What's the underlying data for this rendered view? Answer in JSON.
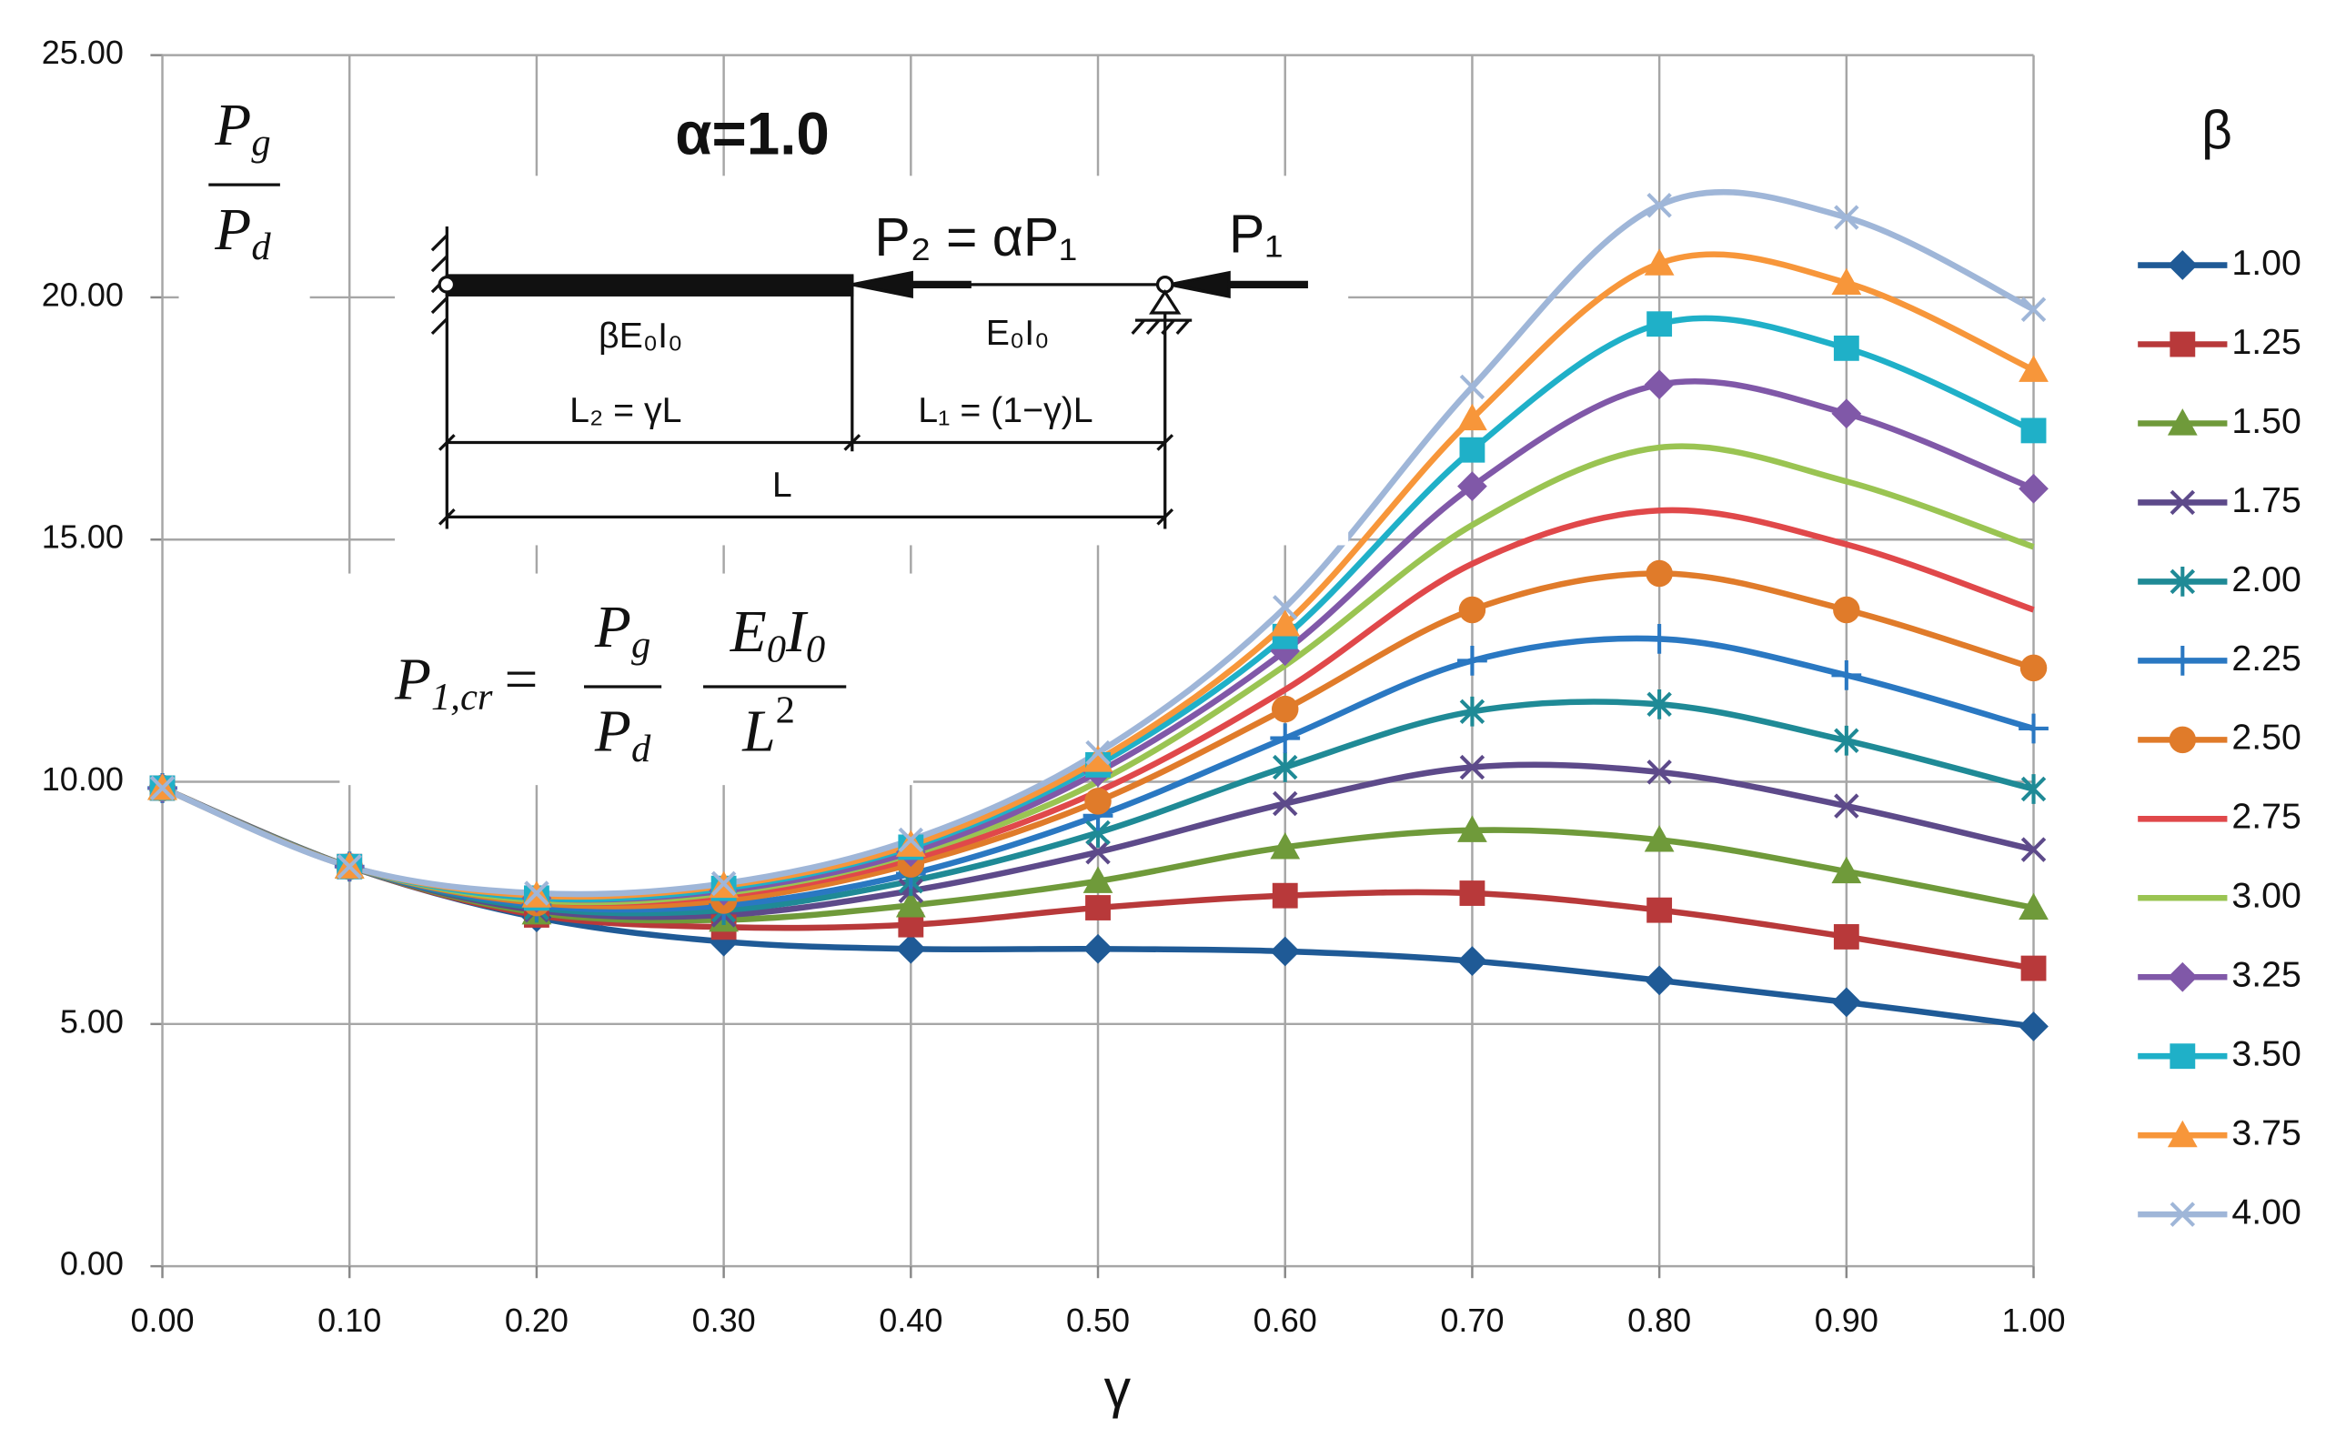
{
  "chart_data": {
    "type": "line",
    "x_label": "γ",
    "legend_title": "β",
    "legend_position": "right",
    "grid": true,
    "x": [
      0,
      0.1,
      0.2,
      0.3,
      0.4,
      0.5,
      0.6,
      0.7,
      0.8,
      0.9,
      1.0
    ],
    "xlim": [
      0,
      1
    ],
    "ylim": [
      0,
      25
    ],
    "xticks": [
      {
        "value": 0,
        "label": "0.00"
      },
      {
        "value": 0.1,
        "label": "0.10"
      },
      {
        "value": 0.2,
        "label": "0.20"
      },
      {
        "value": 0.3,
        "label": "0.30"
      },
      {
        "value": 0.4,
        "label": "0.40"
      },
      {
        "value": 0.5,
        "label": "0.50"
      },
      {
        "value": 0.6,
        "label": "0.60"
      },
      {
        "value": 0.7,
        "label": "0.70"
      },
      {
        "value": 0.8,
        "label": "0.80"
      },
      {
        "value": 0.9,
        "label": "0.90"
      },
      {
        "value": 1.0,
        "label": "1.00"
      }
    ],
    "yticks": [
      {
        "value": 0,
        "label": "0.00"
      },
      {
        "value": 5,
        "label": "5.00"
      },
      {
        "value": 10,
        "label": "10.00"
      },
      {
        "value": 15,
        "label": "15.00"
      },
      {
        "value": 20,
        "label": "20.00"
      },
      {
        "value": 25,
        "label": "25.00"
      }
    ],
    "series": [
      {
        "name": "1.00",
        "color": "#1f5a96",
        "marker": "diamond",
        "values": [
          9.87,
          8.25,
          7.2,
          6.7,
          6.55,
          6.55,
          6.5,
          6.3,
          5.9,
          5.45,
          4.95
        ]
      },
      {
        "name": "1.25",
        "color": "#b8393a",
        "marker": "square",
        "values": [
          9.87,
          8.25,
          7.25,
          7.0,
          7.05,
          7.4,
          7.65,
          7.7,
          7.35,
          6.8,
          6.15
        ]
      },
      {
        "name": "1.50",
        "color": "#6f9a3a",
        "marker": "triangle",
        "values": [
          9.87,
          8.25,
          7.3,
          7.15,
          7.45,
          7.95,
          8.65,
          9.0,
          8.8,
          8.15,
          7.4
        ]
      },
      {
        "name": "1.75",
        "color": "#5d4a8a",
        "marker": "x",
        "values": [
          9.87,
          8.25,
          7.35,
          7.25,
          7.75,
          8.55,
          9.55,
          10.3,
          10.2,
          9.5,
          8.6
        ]
      },
      {
        "name": "2.00",
        "color": "#1f8a96",
        "marker": "star",
        "values": [
          9.87,
          8.25,
          7.4,
          7.35,
          7.95,
          8.95,
          10.3,
          11.45,
          11.6,
          10.85,
          9.85
        ]
      },
      {
        "name": "2.25",
        "color": "#2a78c2",
        "marker": "plus",
        "values": [
          9.87,
          8.25,
          7.45,
          7.45,
          8.1,
          9.3,
          10.9,
          12.5,
          12.95,
          12.2,
          11.1
        ]
      },
      {
        "name": "2.50",
        "color": "#e07b2a",
        "marker": "circle",
        "values": [
          9.87,
          8.25,
          7.5,
          7.55,
          8.3,
          9.6,
          11.5,
          13.55,
          14.3,
          13.55,
          12.35
        ]
      },
      {
        "name": "2.75",
        "color": "#e0484a",
        "marker": "none",
        "values": [
          9.87,
          8.25,
          7.55,
          7.65,
          8.4,
          9.8,
          11.9,
          14.5,
          15.6,
          14.9,
          13.55
        ]
      },
      {
        "name": "3.00",
        "color": "#9ac452",
        "marker": "none",
        "values": [
          9.87,
          8.25,
          7.55,
          7.7,
          8.5,
          10.0,
          12.4,
          15.3,
          16.9,
          16.2,
          14.85
        ]
      },
      {
        "name": "3.25",
        "color": "#8058a8",
        "marker": "diamond",
        "values": [
          9.87,
          8.25,
          7.6,
          7.75,
          8.55,
          10.2,
          12.7,
          16.1,
          18.2,
          17.6,
          16.05
        ]
      },
      {
        "name": "3.50",
        "color": "#1fb0c8",
        "marker": "square",
        "values": [
          9.87,
          8.25,
          7.6,
          7.8,
          8.65,
          10.35,
          13.0,
          16.85,
          19.45,
          18.95,
          17.25
        ]
      },
      {
        "name": "3.75",
        "color": "#f7963a",
        "marker": "triangle",
        "values": [
          9.87,
          8.25,
          7.65,
          7.85,
          8.7,
          10.45,
          13.25,
          17.5,
          20.7,
          20.3,
          18.5
        ]
      },
      {
        "name": "4.00",
        "color": "#9fb6d8",
        "marker": "x",
        "values": [
          9.87,
          8.25,
          7.7,
          7.9,
          8.8,
          10.6,
          13.6,
          18.15,
          21.9,
          21.65,
          19.75
        ]
      }
    ],
    "annotations": {
      "alpha": "α=1.0",
      "ratio": {
        "num": [
          "P",
          "g"
        ],
        "den": [
          "P",
          "d"
        ]
      },
      "formula": {
        "lhs": [
          "P",
          "1,cr",
          "="
        ],
        "num": [
          "P",
          "g"
        ],
        "den": [
          "P",
          "d"
        ],
        "num2": [
          "E",
          "0",
          "I",
          "0"
        ],
        "den2": [
          "L",
          "2"
        ]
      },
      "diagram": {
        "p2": "P₂ = αP₁",
        "p1": "P₁",
        "stiff2": "βE₀I₀",
        "stiff1": "E₀I₀",
        "len2": "L₂ = γL",
        "len1": "L₁ = (1−γ)L",
        "total": "L"
      }
    }
  }
}
